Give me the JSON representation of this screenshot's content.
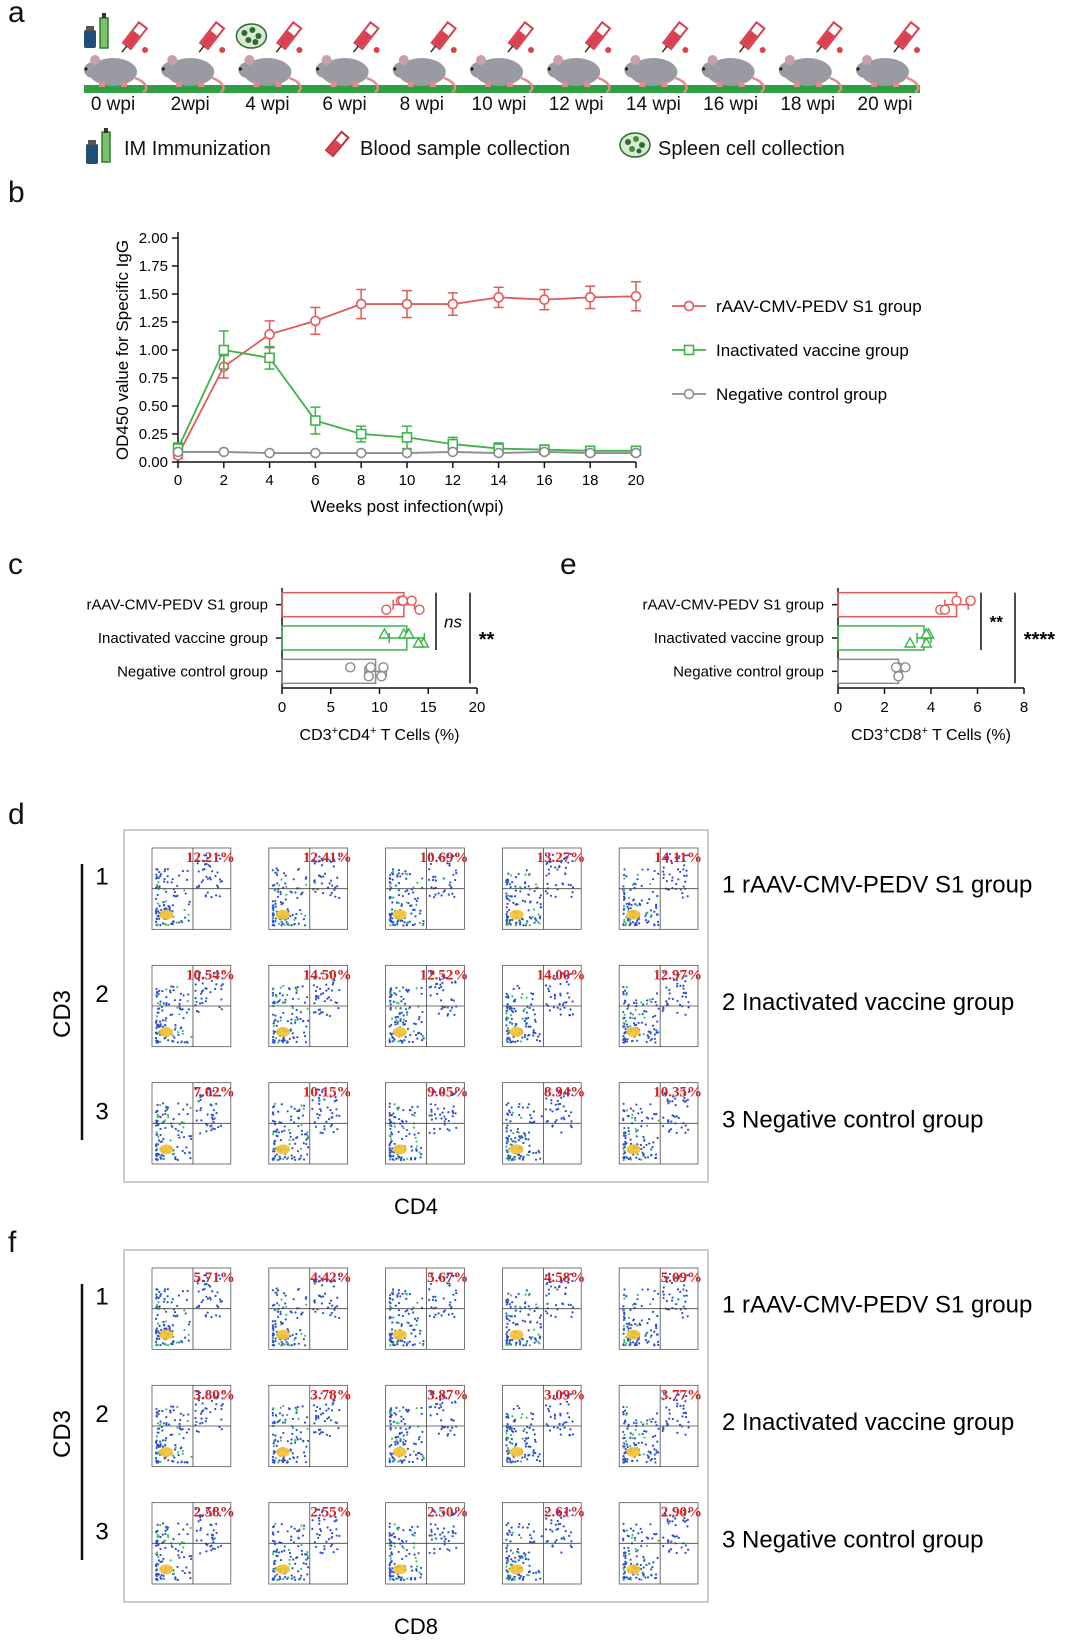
{
  "panels": {
    "a": "a",
    "b": "b",
    "c": "c",
    "d": "d",
    "e": "e",
    "f": "f"
  },
  "timeline": {
    "labels": [
      "0 wpi",
      "2wpi",
      "4 wpi",
      "6 wpi",
      "8 wpi",
      "10 wpi",
      "12 wpi",
      "14 wpi",
      "16 wpi",
      "18 wpi",
      "20 wpi"
    ],
    "legend": {
      "immunization": "IM Immunization",
      "blood": "Blood sample collection",
      "spleen": "Spleen cell collection"
    },
    "colors": {
      "bar": "#2ea043",
      "mouse": "#9a9aa2",
      "syringe": "#d94050"
    },
    "icons": [
      "syringe-icon",
      "blood-tube-icon",
      "spleen-cells-icon",
      "mouse-icon",
      "vaccine-vial-icon"
    ]
  },
  "flow_d": {
    "row_numbers": [
      "1",
      "2",
      "3"
    ],
    "group_labels": [
      "1 rAAV-CMV-PEDV S1 group",
      "2 Inactivated vaccine group",
      "3 Negative control group"
    ],
    "y_axis": "CD3",
    "x_axis": "CD4",
    "percentages": [
      [
        "12.21%",
        "12.41%",
        "10.69%",
        "13.27%",
        "14.11%"
      ],
      [
        "10.54%",
        "14.50%",
        "12.52%",
        "14.00%",
        "12.97%"
      ],
      [
        "7.02%",
        "10.15%",
        "9.05%",
        "8.94%",
        "10.35%"
      ]
    ]
  },
  "flow_f": {
    "row_numbers": [
      "1",
      "2",
      "3"
    ],
    "group_labels": [
      "1 rAAV-CMV-PEDV S1 group",
      "2 Inactivated vaccine group",
      "3 Negative control group"
    ],
    "y_axis": "CD3",
    "x_axis": "CD8",
    "percentages": [
      [
        "5.71%",
        "4.42%",
        "5.67%",
        "4.58%",
        "5.09%"
      ],
      [
        "3.80%",
        "3.78%",
        "3.87%",
        "3.09%",
        "3.77%"
      ],
      [
        "2.58%",
        "2.55%",
        "2.50%",
        "2.61%",
        "2.90%"
      ]
    ]
  },
  "chart_data": [
    {
      "type": "line",
      "ylabel": "OD450 value for Specific IgG",
      "xlabel": "Weeks post infection(wpi)",
      "x": [
        0,
        2,
        4,
        6,
        8,
        10,
        12,
        14,
        16,
        18,
        20
      ],
      "xlim": [
        0,
        20
      ],
      "ylim": [
        0,
        2.0
      ],
      "yticks": [
        "0.00",
        "0.25",
        "0.50",
        "0.75",
        "1.00",
        "1.25",
        "1.50",
        "1.75",
        "2.00"
      ],
      "xticks": [
        "0",
        "2",
        "4",
        "6",
        "8",
        "10",
        "12",
        "14",
        "16",
        "18",
        "20"
      ],
      "legend_position": "right",
      "series": [
        {
          "name": "rAAV-CMV-PEDV S1 group",
          "color": "#e05a5a",
          "marker": "circle",
          "values": [
            0.06,
            0.85,
            1.14,
            1.26,
            1.41,
            1.41,
            1.41,
            1.47,
            1.45,
            1.47,
            1.48
          ],
          "errors": [
            0.03,
            0.1,
            0.12,
            0.12,
            0.13,
            0.12,
            0.1,
            0.09,
            0.09,
            0.1,
            0.13
          ]
        },
        {
          "name": "Inactivated vaccine group",
          "color": "#3cb44b",
          "marker": "square",
          "values": [
            0.12,
            1.0,
            0.93,
            0.37,
            0.25,
            0.22,
            0.16,
            0.12,
            0.11,
            0.1,
            0.1
          ],
          "errors": [
            0.05,
            0.17,
            0.1,
            0.12,
            0.07,
            0.1,
            0.06,
            0.05,
            0.04,
            0.04,
            0.03
          ]
        },
        {
          "name": "Negative control group",
          "color": "#8c8c8c",
          "marker": "circle",
          "values": [
            0.09,
            0.09,
            0.08,
            0.08,
            0.08,
            0.08,
            0.09,
            0.08,
            0.09,
            0.08,
            0.08
          ],
          "errors": [
            0.01,
            0.01,
            0.01,
            0.01,
            0.01,
            0.01,
            0.01,
            0.01,
            0.01,
            0.01,
            0.01
          ]
        }
      ]
    },
    {
      "type": "bar",
      "orientation": "horizontal",
      "xlabel": "CD3+CD4+ T Cells (%)",
      "xlim": [
        0,
        20
      ],
      "xticks": [
        "0",
        "5",
        "10",
        "15",
        "20"
      ],
      "categories": [
        "rAAV-CMV-PEDV S1 group",
        "Inactivated vaccine group",
        "Negative control group"
      ],
      "values": [
        12.5,
        12.8,
        9.6
      ],
      "errors": [
        1.1,
        1.8,
        1.1
      ],
      "colors": [
        "#e05a5a",
        "#3cb44b",
        "#8c8c8c"
      ],
      "markers": [
        "circle",
        "triangle",
        "circle"
      ],
      "points": [
        [
          12.2,
          10.7,
          13.3,
          14.1,
          12.4
        ],
        [
          10.5,
          14.5,
          12.5,
          14.0,
          13.0
        ],
        [
          7.0,
          10.2,
          9.1,
          8.9,
          10.4
        ]
      ],
      "significance": [
        {
          "label": "ns"
        },
        {
          "label": "**"
        }
      ]
    },
    {
      "type": "bar",
      "orientation": "horizontal",
      "xlabel": "CD3+CD8+ T Cells (%)",
      "xlim": [
        0,
        8
      ],
      "xticks": [
        "0",
        "2",
        "4",
        "6",
        "8"
      ],
      "categories": [
        "rAAV-CMV-PEDV S1 group",
        "Inactivated vaccine group",
        "Negative control group"
      ],
      "values": [
        5.1,
        3.7,
        2.6
      ],
      "errors": [
        0.5,
        0.3,
        0.15
      ],
      "colors": [
        "#e05a5a",
        "#3cb44b",
        "#8c8c8c"
      ],
      "markers": [
        "circle",
        "triangle",
        "circle"
      ],
      "points": [
        [
          5.7,
          4.4,
          5.7,
          4.6,
          5.1
        ],
        [
          3.8,
          3.8,
          3.9,
          3.1,
          3.8
        ],
        [
          2.6,
          2.6,
          2.5,
          2.6,
          2.9
        ]
      ],
      "significance": [
        {
          "label": "**"
        },
        {
          "label": "****"
        }
      ]
    }
  ]
}
